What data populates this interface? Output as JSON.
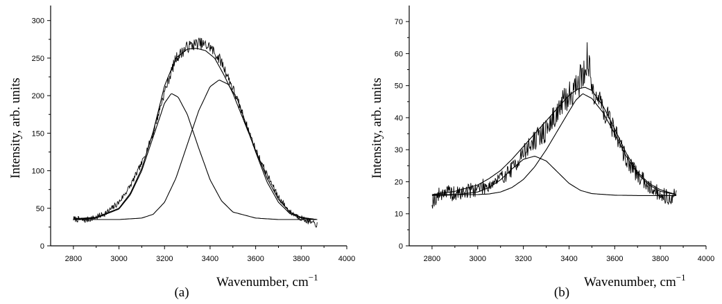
{
  "chart_data": [
    {
      "type": "line",
      "panel_label": "(a)",
      "xlabel": "Wavenumber, cm",
      "xlabel_sup": "−1",
      "ylabel": "Intensity, arb. units",
      "xlim": [
        2700,
        4000
      ],
      "ylim": [
        0,
        320
      ],
      "xticks": [
        2800,
        3000,
        3200,
        3400,
        3600,
        3800,
        4000
      ],
      "yticks": [
        0,
        50,
        100,
        150,
        200,
        250,
        300
      ],
      "series": [
        {
          "role": "measured",
          "x": [
            2800,
            2850,
            2900,
            2950,
            3000,
            3050,
            3100,
            3150,
            3200,
            3250,
            3300,
            3350,
            3400,
            3450,
            3500,
            3550,
            3600,
            3650,
            3700,
            3750,
            3800,
            3850,
            3870
          ],
          "y": [
            36,
            34,
            38,
            45,
            58,
            80,
            110,
            150,
            205,
            250,
            265,
            270,
            265,
            245,
            210,
            170,
            128,
            95,
            65,
            45,
            37,
            30,
            28
          ]
        },
        {
          "role": "fit-component",
          "x": [
            2800,
            2900,
            3000,
            3050,
            3100,
            3150,
            3200,
            3230,
            3260,
            3300,
            3350,
            3400,
            3450,
            3500,
            3600,
            3700,
            3800,
            3870
          ],
          "y": [
            35,
            37,
            49,
            68,
            100,
            145,
            190,
            203,
            198,
            175,
            130,
            88,
            60,
            45,
            37,
            35,
            35,
            35
          ]
        },
        {
          "role": "fit-component",
          "x": [
            2800,
            2900,
            3000,
            3100,
            3150,
            3200,
            3250,
            3300,
            3350,
            3400,
            3440,
            3480,
            3520,
            3560,
            3600,
            3650,
            3700,
            3750,
            3800,
            3870
          ],
          "y": [
            35,
            35,
            35,
            37,
            42,
            58,
            90,
            135,
            180,
            212,
            221,
            215,
            195,
            160,
            125,
            85,
            58,
            43,
            37,
            35
          ]
        },
        {
          "role": "fit-sum",
          "x": [
            2800,
            2900,
            3000,
            3050,
            3100,
            3150,
            3200,
            3250,
            3300,
            3340,
            3380,
            3420,
            3460,
            3500,
            3550,
            3600,
            3650,
            3700,
            3750,
            3800,
            3870
          ],
          "y": [
            36,
            38,
            50,
            70,
            103,
            152,
            213,
            250,
            262,
            263,
            260,
            250,
            228,
            203,
            165,
            127,
            90,
            62,
            45,
            38,
            35
          ]
        }
      ]
    },
    {
      "type": "line",
      "panel_label": "(b)",
      "xlabel": "Wavenumber, cm",
      "xlabel_sup": "−1",
      "ylabel": "Intensity, arb. units",
      "xlim": [
        2700,
        4000
      ],
      "ylim": [
        0,
        75
      ],
      "xticks": [
        2800,
        3000,
        3200,
        3400,
        3600,
        3800,
        4000
      ],
      "yticks": [
        0,
        10,
        20,
        30,
        40,
        50,
        60,
        70
      ],
      "series": [
        {
          "role": "measured",
          "x": [
            2800,
            2850,
            2900,
            2950,
            3000,
            3050,
            3100,
            3150,
            3200,
            3250,
            3300,
            3350,
            3400,
            3450,
            3480,
            3500,
            3550,
            3600,
            3650,
            3700,
            3750,
            3800,
            3850,
            3870
          ],
          "y": [
            14,
            17,
            16,
            17,
            18,
            19,
            21,
            24,
            29,
            33,
            36,
            42,
            47,
            52,
            58,
            50,
            43,
            36,
            27,
            22,
            19,
            16,
            15,
            16
          ]
        },
        {
          "role": "fit-component",
          "x": [
            2800,
            2900,
            3000,
            3050,
            3100,
            3150,
            3200,
            3250,
            3300,
            3350,
            3400,
            3450,
            3500,
            3600,
            3700,
            3870
          ],
          "y": [
            15.7,
            15.9,
            16.8,
            18.2,
            20.6,
            24,
            27,
            28,
            26.5,
            23,
            19.5,
            17.3,
            16.3,
            15.8,
            15.7,
            15.7
          ]
        },
        {
          "role": "fit-component",
          "x": [
            2800,
            2900,
            3000,
            3050,
            3100,
            3150,
            3200,
            3250,
            3300,
            3350,
            3400,
            3430,
            3460,
            3500,
            3550,
            3600,
            3650,
            3700,
            3750,
            3800,
            3870
          ],
          "y": [
            16,
            16,
            16,
            16.2,
            16.8,
            18.2,
            20.7,
            24.7,
            30,
            36,
            42,
            45.5,
            47.5,
            46,
            41.5,
            35,
            28,
            22.5,
            19,
            17,
            16
          ]
        },
        {
          "role": "fit-sum",
          "x": [
            2800,
            2900,
            3000,
            3050,
            3100,
            3150,
            3200,
            3250,
            3300,
            3350,
            3400,
            3440,
            3470,
            3500,
            3550,
            3600,
            3650,
            3700,
            3750,
            3800,
            3870
          ],
          "y": [
            16,
            17,
            19,
            21,
            23.5,
            27,
            31,
            35,
            39,
            43,
            47,
            49,
            49.5,
            48.5,
            43.5,
            36.5,
            29,
            23,
            19.5,
            17.5,
            16
          ]
        }
      ]
    }
  ]
}
